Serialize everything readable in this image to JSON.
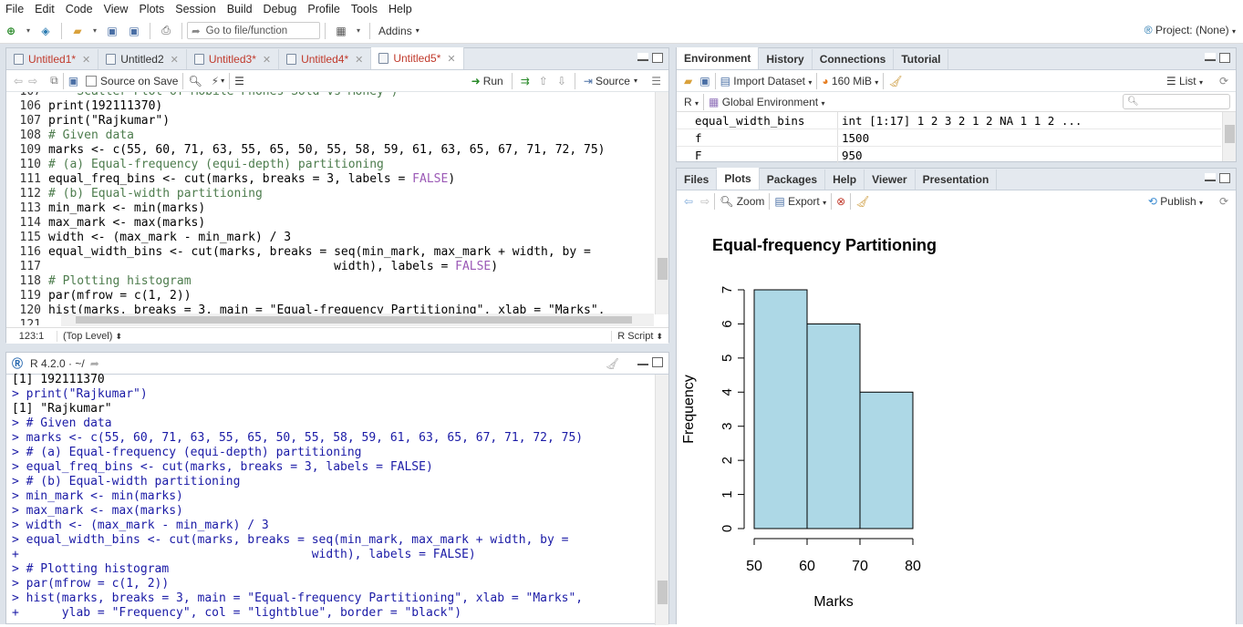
{
  "menu": [
    "File",
    "Edit",
    "Code",
    "View",
    "Plots",
    "Session",
    "Build",
    "Debug",
    "Profile",
    "Tools",
    "Help"
  ],
  "toolbar": {
    "goto_placeholder": "Go to file/function",
    "addins": "Addins",
    "project": "Project: (None)"
  },
  "editor": {
    "tabs": [
      "Untitled1*",
      "Untitled2",
      "Untitled3*",
      "Untitled4*",
      "Untitled5*"
    ],
    "source_on_save": "Source on Save",
    "run": "Run",
    "source": "Source",
    "partial_line": "    Scatter Plot of Mobile Phones Sold vs Money )",
    "partial_num": "107",
    "lines": [
      {
        "n": "106",
        "t": "print(192111370)",
        "c": ""
      },
      {
        "n": "107",
        "t": "print(\"Rajkumar\")",
        "c": ""
      },
      {
        "n": "108",
        "t": "# Given data",
        "c": "cm"
      },
      {
        "n": "109",
        "t": "marks <- c(55, 60, 71, 63, 55, 65, 50, 55, 58, 59, 61, 63, 65, 67, 71, 72, 75)",
        "c": ""
      },
      {
        "n": "110",
        "t": "# (a) Equal-frequency (equi-depth) partitioning",
        "c": "cm"
      },
      {
        "n": "111",
        "t": "equal_freq_bins <- cut(marks, breaks = 3, labels = ",
        "k": "FALSE",
        "e": ")",
        "c": ""
      },
      {
        "n": "112",
        "t": "# (b) Equal-width partitioning",
        "c": "cm"
      },
      {
        "n": "113",
        "t": "min_mark <- min(marks)",
        "c": ""
      },
      {
        "n": "114",
        "t": "max_mark <- max(marks)",
        "c": ""
      },
      {
        "n": "115",
        "t": "width <- (max_mark - min_mark) / 3",
        "c": ""
      },
      {
        "n": "116",
        "t": "equal_width_bins <- cut(marks, breaks = seq(min_mark, max_mark + width, by =",
        "c": ""
      },
      {
        "n": "117",
        "t": "                                        width), labels = ",
        "k": "FALSE",
        "e": ")",
        "c": ""
      },
      {
        "n": "118",
        "t": "# Plotting histogram",
        "c": "cm"
      },
      {
        "n": "119",
        "t": "par(mfrow = c(1, 2))",
        "c": ""
      },
      {
        "n": "120",
        "t": "hist(marks, breaks = 3, main = \"Equal-frequency Partitioning\", xlab = \"Marks\",",
        "c": ""
      },
      {
        "n": "121",
        "t": "",
        "c": ""
      }
    ],
    "status_pos": "123:1",
    "status_scope": "(Top Level)",
    "status_type": "R Script"
  },
  "console": {
    "version": "R 4.2.0 · ~/",
    "lines": [
      {
        "p": "",
        "t": "[1] 192111370",
        "o": true
      },
      {
        "p": "> ",
        "t": "print(\"Rajkumar\")"
      },
      {
        "p": "",
        "t": "[1] \"Rajkumar\"",
        "o": true
      },
      {
        "p": "> ",
        "t": "# Given data"
      },
      {
        "p": "> ",
        "t": "marks <- c(55, 60, 71, 63, 55, 65, 50, 55, 58, 59, 61, 63, 65, 67, 71, 72, 75)"
      },
      {
        "p": "> ",
        "t": "# (a) Equal-frequency (equi-depth) partitioning"
      },
      {
        "p": "> ",
        "t": "equal_freq_bins <- cut(marks, breaks = 3, labels = FALSE)"
      },
      {
        "p": "> ",
        "t": "# (b) Equal-width partitioning"
      },
      {
        "p": "> ",
        "t": "min_mark <- min(marks)"
      },
      {
        "p": "> ",
        "t": "max_mark <- max(marks)"
      },
      {
        "p": "> ",
        "t": "width <- (max_mark - min_mark) / 3"
      },
      {
        "p": "> ",
        "t": "equal_width_bins <- cut(marks, breaks = seq(min_mark, max_mark + width, by ="
      },
      {
        "p": "+ ",
        "t": "                                        width), labels = FALSE)"
      },
      {
        "p": "> ",
        "t": "# Plotting histogram"
      },
      {
        "p": "> ",
        "t": "par(mfrow = c(1, 2))"
      },
      {
        "p": "> ",
        "t": "hist(marks, breaks = 3, main = \"Equal-frequency Partitioning\", xlab = \"Marks\","
      },
      {
        "p": "+ ",
        "t": "     ylab = \"Frequency\", col = \"lightblue\", border = \"black\")"
      }
    ]
  },
  "env": {
    "tabs": [
      "Environment",
      "History",
      "Connections",
      "Tutorial"
    ],
    "import": "Import Dataset",
    "mem": "160 MiB",
    "list": "List",
    "r": "R",
    "global": "Global Environment",
    "rows": [
      {
        "name": "equal_width_bins",
        "value": "int [1:17] 1 2 3 2 1 2 NA 1 1 2 ..."
      },
      {
        "name": "f",
        "value": "1500"
      },
      {
        "name": "F",
        "value": "950"
      }
    ]
  },
  "files": {
    "tabs": [
      "Files",
      "Plots",
      "Packages",
      "Help",
      "Viewer",
      "Presentation"
    ],
    "zoom": "Zoom",
    "export": "Export",
    "publish": "Publish"
  },
  "chart_data": {
    "type": "bar",
    "title": "Equal-frequency Partitioning",
    "xlabel": "Marks",
    "ylabel": "Frequency",
    "bins": [
      [
        50,
        60
      ],
      [
        60,
        70
      ],
      [
        70,
        80
      ]
    ],
    "values": [
      7,
      6,
      4
    ],
    "x_ticks": [
      "50",
      "60",
      "70",
      "80"
    ],
    "y_ticks": [
      "0",
      "1",
      "2",
      "3",
      "4",
      "5",
      "6",
      "7"
    ],
    "xlim": [
      50,
      80
    ],
    "ylim": [
      0,
      7
    ],
    "bar_color": "#add8e6",
    "border_color": "#000000"
  }
}
